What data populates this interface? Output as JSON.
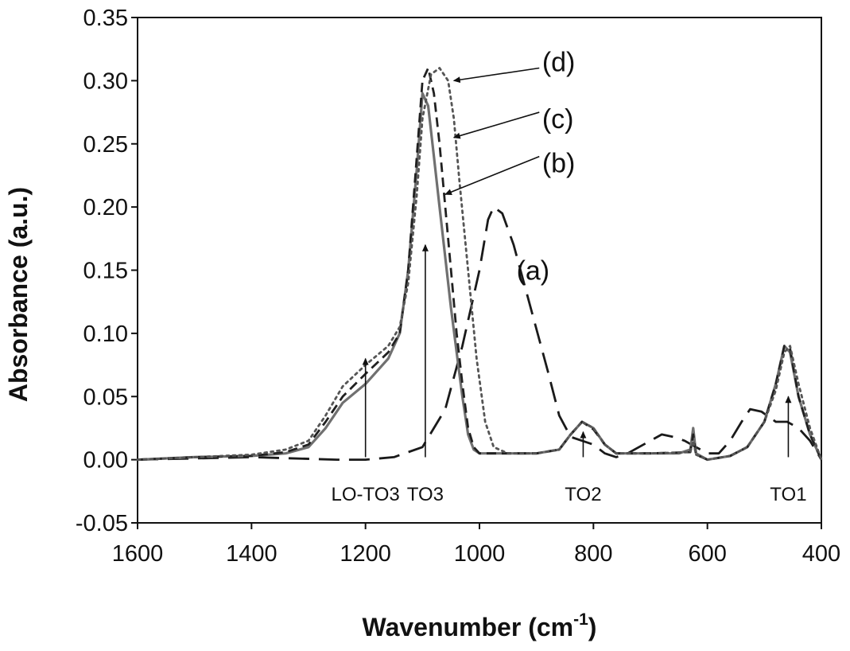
{
  "chart_data": {
    "type": "line",
    "xlabel": "Wavenumber (cm",
    "xlabel_sup": "-1",
    "xlabel_close": ")",
    "ylabel": "Absorbance (a.u.)",
    "xlim": [
      1600,
      400
    ],
    "ylim": [
      -0.05,
      0.35
    ],
    "x_reversed": true,
    "grid": false,
    "xticks": [
      1600,
      1400,
      1200,
      1000,
      800,
      600,
      400
    ],
    "xtick_labels": [
      "1600",
      "1400",
      "1200",
      "1000",
      "800",
      "600",
      "400"
    ],
    "yticks": [
      -0.05,
      0,
      0.05,
      0.1,
      0.15,
      0.2,
      0.25,
      0.3,
      0.35
    ],
    "ytick_labels": [
      "-0.05",
      "0.00",
      "0.05",
      "0.10",
      "0.15",
      "0.20",
      "0.25",
      "0.30",
      "0.35"
    ],
    "series": [
      {
        "name": "(a)",
        "style": "long-dash",
        "color": "#1a1a1a",
        "points": [
          [
            1600,
            0.0
          ],
          [
            1400,
            0.002
          ],
          [
            1250,
            0.0
          ],
          [
            1200,
            0.0
          ],
          [
            1150,
            0.002
          ],
          [
            1100,
            0.01
          ],
          [
            1060,
            0.04
          ],
          [
            1030,
            0.09
          ],
          [
            1000,
            0.15
          ],
          [
            985,
            0.19
          ],
          [
            975,
            0.2
          ],
          [
            960,
            0.195
          ],
          [
            940,
            0.17
          ],
          [
            910,
            0.12
          ],
          [
            880,
            0.07
          ],
          [
            860,
            0.035
          ],
          [
            840,
            0.018
          ],
          [
            820,
            0.015
          ],
          [
            800,
            0.012
          ],
          [
            780,
            0.005
          ],
          [
            760,
            0.002
          ],
          [
            740,
            0.005
          ],
          [
            700,
            0.015
          ],
          [
            680,
            0.02
          ],
          [
            660,
            0.018
          ],
          [
            640,
            0.015
          ],
          [
            620,
            0.01
          ],
          [
            600,
            0.005
          ],
          [
            580,
            0.005
          ],
          [
            560,
            0.015
          ],
          [
            540,
            0.03
          ],
          [
            525,
            0.04
          ],
          [
            505,
            0.038
          ],
          [
            480,
            0.03
          ],
          [
            460,
            0.03
          ],
          [
            440,
            0.025
          ],
          [
            420,
            0.015
          ],
          [
            400,
            0.0
          ]
        ]
      },
      {
        "name": "(b)",
        "style": "solid",
        "color": "#707070",
        "points": [
          [
            1600,
            0.0
          ],
          [
            1500,
            0.002
          ],
          [
            1400,
            0.003
          ],
          [
            1340,
            0.005
          ],
          [
            1300,
            0.01
          ],
          [
            1270,
            0.025
          ],
          [
            1240,
            0.045
          ],
          [
            1200,
            0.06
          ],
          [
            1160,
            0.08
          ],
          [
            1140,
            0.1
          ],
          [
            1125,
            0.15
          ],
          [
            1110,
            0.23
          ],
          [
            1100,
            0.29
          ],
          [
            1090,
            0.28
          ],
          [
            1080,
            0.24
          ],
          [
            1070,
            0.2
          ],
          [
            1060,
            0.16
          ],
          [
            1050,
            0.12
          ],
          [
            1040,
            0.085
          ],
          [
            1030,
            0.05
          ],
          [
            1020,
            0.02
          ],
          [
            1010,
            0.008
          ],
          [
            1000,
            0.005
          ],
          [
            900,
            0.005
          ],
          [
            860,
            0.008
          ],
          [
            840,
            0.02
          ],
          [
            820,
            0.03
          ],
          [
            800,
            0.025
          ],
          [
            780,
            0.012
          ],
          [
            760,
            0.005
          ],
          [
            700,
            0.005
          ],
          [
            650,
            0.005
          ],
          [
            630,
            0.008
          ],
          [
            625,
            0.025
          ],
          [
            620,
            0.005
          ],
          [
            600,
            0.0
          ],
          [
            560,
            0.003
          ],
          [
            530,
            0.01
          ],
          [
            500,
            0.03
          ],
          [
            480,
            0.06
          ],
          [
            465,
            0.09
          ],
          [
            455,
            0.085
          ],
          [
            440,
            0.05
          ],
          [
            420,
            0.02
          ],
          [
            400,
            0.0
          ]
        ]
      },
      {
        "name": "(c)",
        "style": "short-dash",
        "color": "#202020",
        "points": [
          [
            1600,
            0.0
          ],
          [
            1500,
            0.002
          ],
          [
            1400,
            0.003
          ],
          [
            1340,
            0.006
          ],
          [
            1300,
            0.012
          ],
          [
            1270,
            0.03
          ],
          [
            1240,
            0.05
          ],
          [
            1200,
            0.068
          ],
          [
            1160,
            0.085
          ],
          [
            1140,
            0.1
          ],
          [
            1125,
            0.15
          ],
          [
            1110,
            0.24
          ],
          [
            1100,
            0.3
          ],
          [
            1090,
            0.31
          ],
          [
            1080,
            0.29
          ],
          [
            1070,
            0.25
          ],
          [
            1060,
            0.2
          ],
          [
            1050,
            0.15
          ],
          [
            1040,
            0.1
          ],
          [
            1030,
            0.06
          ],
          [
            1020,
            0.025
          ],
          [
            1010,
            0.01
          ],
          [
            1000,
            0.005
          ],
          [
            900,
            0.005
          ],
          [
            860,
            0.008
          ],
          [
            840,
            0.02
          ],
          [
            820,
            0.03
          ],
          [
            800,
            0.024
          ],
          [
            780,
            0.012
          ],
          [
            760,
            0.005
          ],
          [
            700,
            0.005
          ],
          [
            630,
            0.006
          ],
          [
            625,
            0.02
          ],
          [
            620,
            0.004
          ],
          [
            600,
            0.0
          ],
          [
            560,
            0.003
          ],
          [
            530,
            0.01
          ],
          [
            500,
            0.03
          ],
          [
            480,
            0.06
          ],
          [
            465,
            0.09
          ],
          [
            455,
            0.088
          ],
          [
            440,
            0.05
          ],
          [
            420,
            0.02
          ],
          [
            400,
            0.0
          ]
        ]
      },
      {
        "name": "(d)",
        "style": "dotted",
        "color": "#555555",
        "points": [
          [
            1600,
            0.0
          ],
          [
            1500,
            0.002
          ],
          [
            1400,
            0.004
          ],
          [
            1340,
            0.008
          ],
          [
            1300,
            0.015
          ],
          [
            1270,
            0.035
          ],
          [
            1240,
            0.058
          ],
          [
            1200,
            0.075
          ],
          [
            1160,
            0.09
          ],
          [
            1140,
            0.105
          ],
          [
            1125,
            0.14
          ],
          [
            1110,
            0.21
          ],
          [
            1100,
            0.27
          ],
          [
            1085,
            0.305
          ],
          [
            1070,
            0.31
          ],
          [
            1055,
            0.3
          ],
          [
            1045,
            0.27
          ],
          [
            1035,
            0.22
          ],
          [
            1020,
            0.15
          ],
          [
            1005,
            0.08
          ],
          [
            990,
            0.03
          ],
          [
            975,
            0.01
          ],
          [
            950,
            0.005
          ],
          [
            900,
            0.005
          ],
          [
            860,
            0.008
          ],
          [
            840,
            0.02
          ],
          [
            820,
            0.03
          ],
          [
            800,
            0.025
          ],
          [
            780,
            0.012
          ],
          [
            760,
            0.005
          ],
          [
            700,
            0.005
          ],
          [
            630,
            0.006
          ],
          [
            625,
            0.015
          ],
          [
            620,
            0.004
          ],
          [
            600,
            0.0
          ],
          [
            560,
            0.003
          ],
          [
            530,
            0.01
          ],
          [
            500,
            0.03
          ],
          [
            480,
            0.055
          ],
          [
            465,
            0.085
          ],
          [
            455,
            0.09
          ],
          [
            440,
            0.06
          ],
          [
            420,
            0.025
          ],
          [
            400,
            0.0
          ]
        ]
      }
    ],
    "series_labels": [
      {
        "text": "(a)",
        "x": 935,
        "y": 0.15
      },
      {
        "text": "(b)",
        "x": 890,
        "y": 0.235
      },
      {
        "text": "(c)",
        "x": 890,
        "y": 0.27
      },
      {
        "text": "(d)",
        "x": 890,
        "y": 0.315
      }
    ],
    "series_pointers": [
      {
        "from": [
          895,
          0.24
        ],
        "to": [
          1060,
          0.21
        ]
      },
      {
        "from": [
          895,
          0.275
        ],
        "to": [
          1045,
          0.255
        ]
      },
      {
        "from": [
          895,
          0.31
        ],
        "to": [
          1045,
          0.3
        ]
      }
    ],
    "annotations": [
      {
        "text": "LO-TO3",
        "x": 1200,
        "arrow_from_y": 0.002,
        "arrow_to_y": 0.08
      },
      {
        "text": "TO3",
        "x": 1095,
        "arrow_from_y": 0.002,
        "arrow_to_y": 0.17
      },
      {
        "text": "TO2",
        "x": 818,
        "arrow_from_y": 0.002,
        "arrow_to_y": 0.022
      },
      {
        "text": "TO1",
        "x": 458,
        "arrow_from_y": 0.002,
        "arrow_to_y": 0.05
      }
    ]
  }
}
